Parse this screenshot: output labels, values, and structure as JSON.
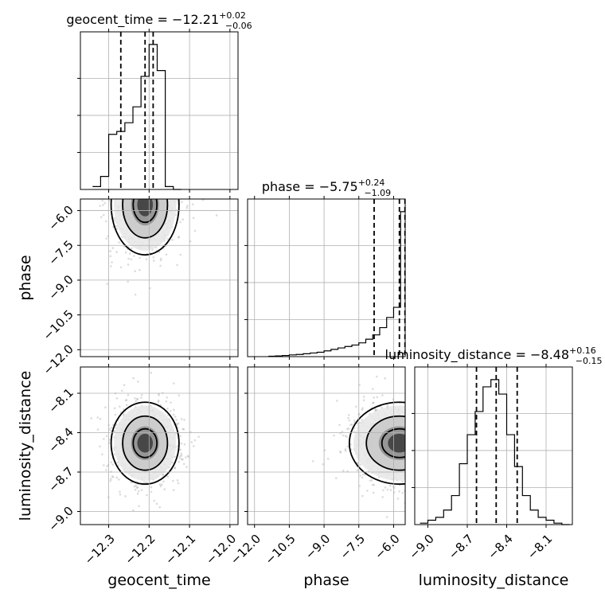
{
  "chart_data": {
    "type": "corner",
    "parameters": [
      "geocent_time",
      "phase",
      "luminosity_distance"
    ],
    "titles": [
      {
        "param": "geocent_time",
        "prefix": "geocent_time = ",
        "median": "−12.21",
        "plus": "+0.02",
        "minus": "−0.06"
      },
      {
        "param": "phase",
        "prefix": "phase = ",
        "median": "−5.75",
        "plus": "+0.24",
        "minus": "−1.09"
      },
      {
        "param": "luminosity_distance",
        "prefix": "luminosity_distance = ",
        "median": "−8.48",
        "plus": "+0.16",
        "minus": "−0.15"
      }
    ],
    "axes": {
      "geocent_time": {
        "range": [
          -12.37,
          -11.98
        ],
        "ticks": [
          -12.3,
          -12.2,
          -12.1,
          -12.0
        ],
        "tick_labels": [
          "−12.3",
          "−12.2",
          "−12.1",
          "−12.0"
        ]
      },
      "phase": {
        "range": [
          -12.3,
          -5.5
        ],
        "ticks": [
          -12.0,
          -10.5,
          -9.0,
          -7.5,
          -6.0
        ],
        "tick_labels": [
          "−12.0",
          "−10.5",
          "−9.0",
          "−7.5",
          "−6.0"
        ]
      },
      "luminosity_distance": {
        "range": [
          -9.1,
          -7.9
        ],
        "ticks": [
          -9.0,
          -8.7,
          -8.4,
          -8.1
        ],
        "tick_labels": [
          "−9.0",
          "−8.7",
          "−8.4",
          "−8.1"
        ]
      }
    },
    "histograms": {
      "geocent_time": {
        "bins": [
          -12.34,
          -12.32,
          -12.3,
          -12.28,
          -12.26,
          -12.24,
          -12.22,
          -12.2,
          -12.18,
          -12.16,
          -12.14,
          -12.12
        ],
        "values": [
          0.02,
          0.09,
          0.38,
          0.4,
          0.46,
          0.57,
          0.78,
          1.0,
          0.82,
          0.02,
          0.0
        ],
        "quantiles": [
          -12.27,
          -12.21,
          -12.19
        ]
      },
      "phase": {
        "bins": [
          -11.4,
          -11.1,
          -10.8,
          -10.5,
          -10.2,
          -9.9,
          -9.6,
          -9.3,
          -9.0,
          -8.7,
          -8.4,
          -8.1,
          -7.8,
          -7.5,
          -7.2,
          -6.9,
          -6.6,
          -6.3,
          -6.0,
          -5.7,
          -5.5
        ],
        "values": [
          0.003,
          0.005,
          0.008,
          0.012,
          0.015,
          0.02,
          0.025,
          0.03,
          0.04,
          0.05,
          0.06,
          0.07,
          0.08,
          0.095,
          0.12,
          0.15,
          0.2,
          0.27,
          0.34,
          1.0
        ],
        "quantiles": [
          -6.84,
          -5.75,
          -5.51
        ]
      },
      "luminosity_distance": {
        "bins": [
          -9.06,
          -9.0,
          -8.94,
          -8.88,
          -8.82,
          -8.76,
          -8.7,
          -8.64,
          -8.58,
          -8.52,
          -8.46,
          -8.4,
          -8.34,
          -8.28,
          -8.22,
          -8.16,
          -8.1,
          -8.04,
          -7.98,
          -7.92
        ],
        "values": [
          0.01,
          0.03,
          0.05,
          0.1,
          0.2,
          0.42,
          0.62,
          0.78,
          0.95,
          1.0,
          0.9,
          0.62,
          0.4,
          0.2,
          0.1,
          0.05,
          0.03,
          0.01,
          0.0
        ],
        "quantiles": [
          -8.63,
          -8.48,
          -8.32
        ]
      }
    },
    "grid": true
  }
}
